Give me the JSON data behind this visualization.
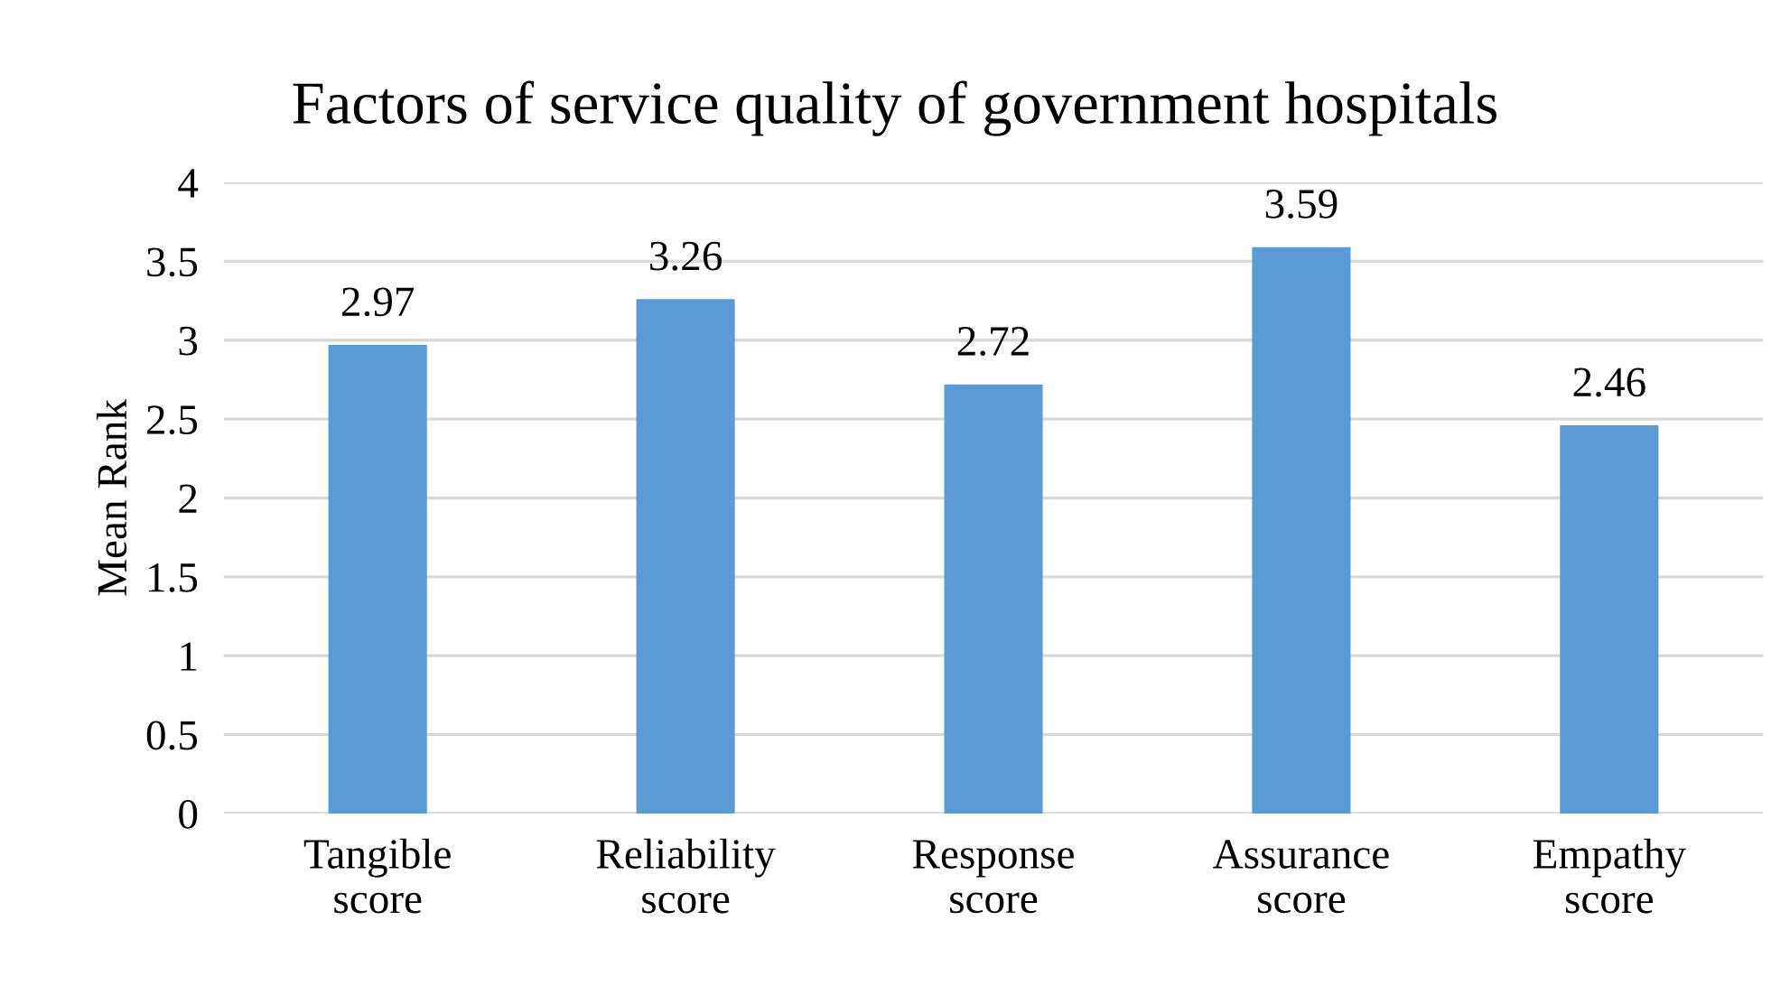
{
  "chart_data": {
    "type": "bar",
    "title": "Factors of service quality of government hospitals",
    "ylabel": "Mean Rank",
    "categories": [
      "Tangible\nscore",
      "Reliability\nscore",
      "Response\nscore",
      "Assurance\nscore",
      "Empathy\nscore"
    ],
    "values": [
      2.97,
      3.26,
      2.72,
      3.59,
      2.46
    ],
    "color": "#5b9bd5",
    "ylim": [
      0,
      4
    ],
    "yticks": [
      0,
      0.5,
      1,
      1.5,
      2,
      2.5,
      3,
      3.5,
      4
    ],
    "grid": "y",
    "data_labels": true
  }
}
